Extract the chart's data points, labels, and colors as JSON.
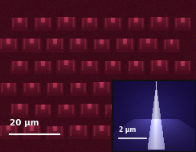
{
  "figsize": [
    2.44,
    1.89
  ],
  "dpi": 100,
  "main_bg_color": "#3d0010",
  "inset_bg_color": "#1a0a4a",
  "scalebar_main_text": "20 μm",
  "scalebar_inset_text": "2 μm"
}
